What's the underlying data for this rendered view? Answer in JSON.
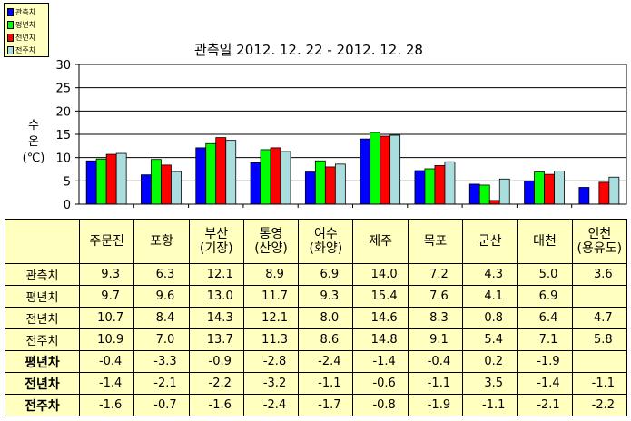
{
  "legend": {
    "items": [
      {
        "label": "관측치",
        "color": "#0000ff"
      },
      {
        "label": "평년치",
        "color": "#00ff00"
      },
      {
        "label": "전년치",
        "color": "#ff0000"
      },
      {
        "label": "전주치",
        "color": "#aadddd"
      }
    ]
  },
  "chart_data": {
    "type": "bar",
    "title": "관측일 2012. 12. 22 -  2012. 12. 28",
    "ylabel": "수\n온\n(℃)",
    "ylim": [
      0,
      30
    ],
    "yticks": [
      0,
      5,
      10,
      15,
      20,
      25,
      30
    ],
    "grid": true,
    "legend_position": "top-left",
    "categories": [
      "주문진",
      "포항",
      "부산 (기장)",
      "통영 (산양)",
      "여수 (화양)",
      "제주",
      "목포",
      "군산",
      "대천",
      "인천 (용유도)"
    ],
    "series": [
      {
        "name": "관측치",
        "color": "#0000ff",
        "values": [
          9.3,
          6.3,
          12.1,
          8.9,
          6.9,
          14.0,
          7.2,
          4.3,
          5.0,
          3.6
        ]
      },
      {
        "name": "평년치",
        "color": "#00ff00",
        "values": [
          9.7,
          9.6,
          13.0,
          11.7,
          9.3,
          15.4,
          7.6,
          4.1,
          6.9,
          null
        ]
      },
      {
        "name": "전년치",
        "color": "#ff0000",
        "values": [
          10.7,
          8.4,
          14.3,
          12.1,
          8.0,
          14.6,
          8.3,
          0.8,
          6.4,
          4.7
        ]
      },
      {
        "name": "전주치",
        "color": "#aadddd",
        "values": [
          10.9,
          7.0,
          13.7,
          11.3,
          8.6,
          14.8,
          9.1,
          5.4,
          7.1,
          5.8
        ]
      }
    ]
  },
  "table": {
    "headers": [
      [
        "주문진"
      ],
      [
        "포항"
      ],
      [
        "부산",
        "(기장)"
      ],
      [
        "통영",
        "(산양)"
      ],
      [
        "여수",
        "(화양)"
      ],
      [
        "제주"
      ],
      [
        "목포"
      ],
      [
        "군산"
      ],
      [
        "대천"
      ],
      [
        "인천",
        "(용유도)"
      ]
    ],
    "rows": [
      {
        "label": "관측치",
        "bold": false,
        "values": [
          "9.3",
          "6.3",
          "12.1",
          "8.9",
          "6.9",
          "14.0",
          "7.2",
          "4.3",
          "5.0",
          "3.6"
        ]
      },
      {
        "label": "평년치",
        "bold": false,
        "values": [
          "9.7",
          "9.6",
          "13.0",
          "11.7",
          "9.3",
          "15.4",
          "7.6",
          "4.1",
          "6.9",
          ""
        ]
      },
      {
        "label": "전년치",
        "bold": false,
        "values": [
          "10.7",
          "8.4",
          "14.3",
          "12.1",
          "8.0",
          "14.6",
          "8.3",
          "0.8",
          "6.4",
          "4.7"
        ]
      },
      {
        "label": "전주치",
        "bold": false,
        "values": [
          "10.9",
          "7.0",
          "13.7",
          "11.3",
          "8.6",
          "14.8",
          "9.1",
          "5.4",
          "7.1",
          "5.8"
        ]
      },
      {
        "label": "평년차",
        "bold": true,
        "values": [
          "-0.4",
          "-3.3",
          "-0.9",
          "-2.8",
          "-2.4",
          "-1.4",
          "-0.4",
          "0.2",
          "-1.9",
          ""
        ]
      },
      {
        "label": "전년차",
        "bold": true,
        "values": [
          "-1.4",
          "-2.1",
          "-2.2",
          "-3.2",
          "-1.1",
          "-0.6",
          "-1.1",
          "3.5",
          "-1.4",
          "-1.1"
        ]
      },
      {
        "label": "전주차",
        "bold": true,
        "values": [
          "-1.6",
          "-0.7",
          "-1.6",
          "-2.4",
          "-1.7",
          "-0.8",
          "-1.9",
          "-1.1",
          "-2.1",
          "-2.2"
        ]
      }
    ]
  }
}
